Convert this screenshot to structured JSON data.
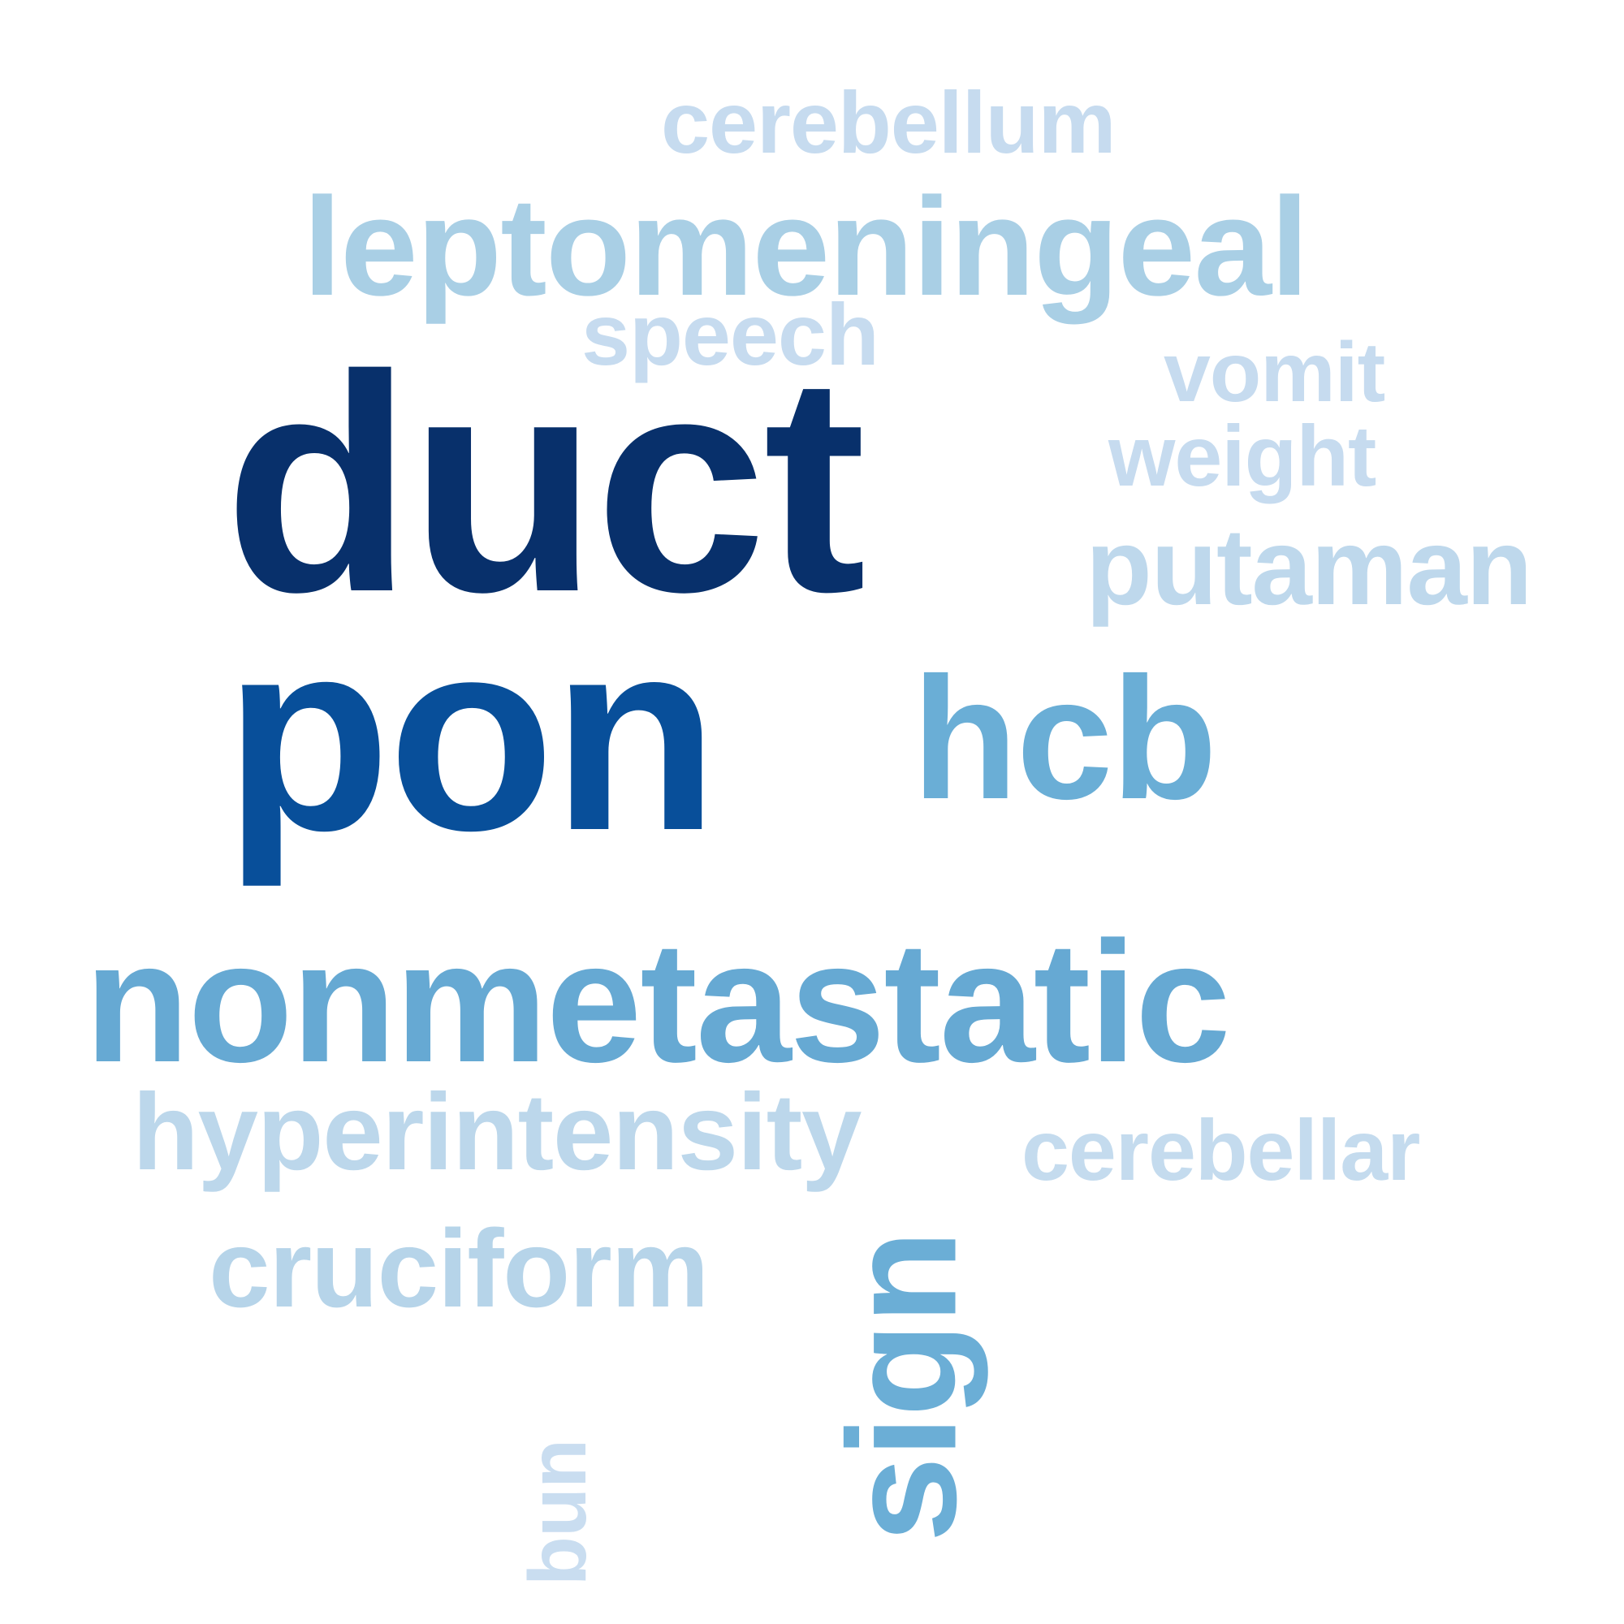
{
  "words": [
    {
      "id": "duct",
      "text": "duct",
      "color": "#08306b"
    },
    {
      "id": "pon",
      "text": "pon",
      "color": "#084f9a"
    },
    {
      "id": "nonmetastatic",
      "text": "nonmetastatic",
      "color": "#66a9d3"
    },
    {
      "id": "hcb",
      "text": "hcb",
      "color": "#6aaed6"
    },
    {
      "id": "sign",
      "text": "sign",
      "color": "#6baed6"
    },
    {
      "id": "leptomeningeal",
      "text": "leptomeningeal",
      "color": "#a9cfe5"
    },
    {
      "id": "cruciform",
      "text": "cruciform",
      "color": "#b6d4e9"
    },
    {
      "id": "hyperintensity",
      "text": "hyperintensity",
      "color": "#bcd7eb"
    },
    {
      "id": "putaman",
      "text": "putaman",
      "color": "#bed8ec"
    },
    {
      "id": "cerebellar",
      "text": "cerebellar",
      "color": "#c4dbee"
    },
    {
      "id": "cerebellum",
      "text": "cerebellum",
      "color": "#c6dbef"
    },
    {
      "id": "speech",
      "text": "speech",
      "color": "#c6dbef"
    },
    {
      "id": "vomit",
      "text": "vomit",
      "color": "#c6dbef"
    },
    {
      "id": "weight",
      "text": "weight",
      "color": "#c6dbef"
    },
    {
      "id": "bun",
      "text": "bun",
      "color": "#c9ddf0"
    }
  ]
}
